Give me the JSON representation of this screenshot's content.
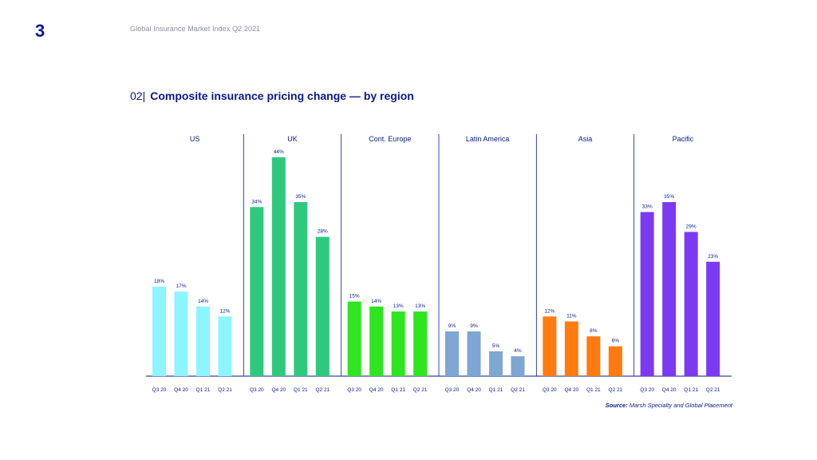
{
  "page": {
    "number": "3",
    "header_title": "Global Insurance Market Index Q2 2021",
    "chart_number": "02|",
    "chart_title": "Composite insurance pricing change — by region",
    "source_label": "Source:",
    "source_text": "Marsh Specialty and Global Placement"
  },
  "chart_data": {
    "type": "bar",
    "title": "Composite insurance pricing change — by region",
    "categories": [
      "Q3 20",
      "Q4 20",
      "Q1 21",
      "Q2 21"
    ],
    "ylabel": "",
    "xlabel": "",
    "ylim": [
      0,
      50
    ],
    "groups": [
      {
        "name": "US",
        "color": "#8df5ff",
        "values": [
          18,
          17,
          14,
          12
        ],
        "labels": [
          "18%",
          "17%",
          "14%",
          "12%"
        ]
      },
      {
        "name": "UK",
        "color": "#2fc97d",
        "values": [
          34,
          44,
          35,
          28
        ],
        "labels": [
          "34%",
          "44%",
          "35%",
          "28%"
        ]
      },
      {
        "name": "Cont. Europe",
        "color": "#2ee520",
        "values": [
          15,
          14,
          13,
          13
        ],
        "labels": [
          "15%",
          "14%",
          "13%",
          "13%"
        ]
      },
      {
        "name": "Latin America",
        "color": "#7ea6d2",
        "values": [
          9,
          9,
          5,
          4
        ],
        "labels": [
          "9%",
          "9%",
          "5%",
          "4%"
        ]
      },
      {
        "name": "Asia",
        "color": "#ff7b0f",
        "values": [
          12,
          11,
          8,
          6
        ],
        "labels": [
          "12%",
          "11%",
          "8%",
          "6%"
        ]
      },
      {
        "name": "Pacific",
        "color": "#7b3af2",
        "values": [
          33,
          35,
          29,
          23
        ],
        "labels": [
          "33%",
          "35%",
          "29%",
          "23%"
        ]
      }
    ]
  }
}
